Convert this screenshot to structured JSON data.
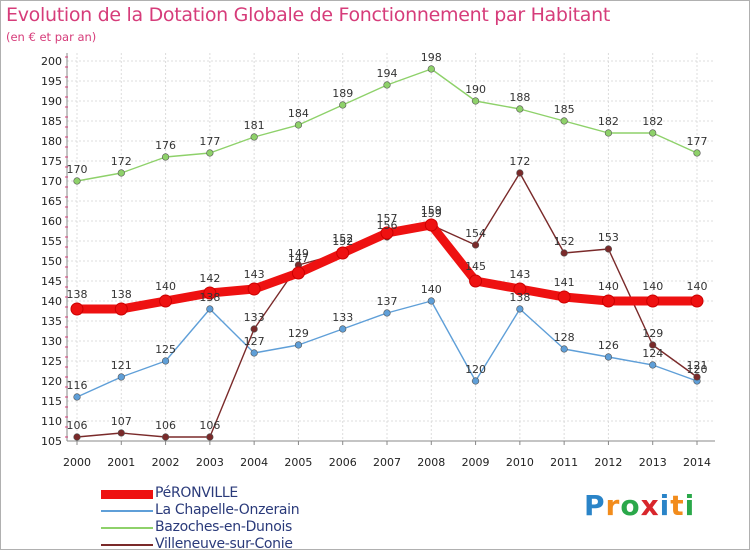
{
  "title": "Evolution de la Dotation Globale de Fonctionnement par Habitant",
  "subtitle": "(en € et par an)",
  "logo": {
    "text": "Proxiti",
    "letters": [
      "P",
      "r",
      "o",
      "x",
      "i",
      "t",
      "i"
    ],
    "colors": [
      "#2a84c8",
      "#f28c1c",
      "#2aa84a",
      "#d8262c",
      "#2a84c8",
      "#f28c1c",
      "#2aa84a"
    ]
  },
  "chart_data": {
    "type": "line",
    "x": [
      "2000",
      "2001",
      "2002",
      "2003",
      "2004",
      "2005",
      "2006",
      "2007",
      "2008",
      "2009",
      "2010",
      "2011",
      "2012",
      "2013",
      "2014"
    ],
    "ylim": [
      105,
      200
    ],
    "yticks": [
      105,
      110,
      115,
      120,
      125,
      130,
      135,
      140,
      145,
      150,
      155,
      160,
      165,
      170,
      175,
      180,
      185,
      190,
      195,
      200
    ],
    "grid": true,
    "legend_position": "bottom-left",
    "series": [
      {
        "name": "PéRONVILLE",
        "color": "#ee1111",
        "values": [
          138,
          138,
          140,
          142,
          143,
          147,
          152,
          157,
          159,
          145,
          143,
          141,
          140,
          140,
          140
        ],
        "labels": [
          "138",
          "138",
          "140",
          "142",
          "143",
          "147",
          "152",
          "157",
          "159",
          "145",
          "143",
          "141",
          "140",
          "140",
          "140"
        ]
      },
      {
        "name": "La Chapelle-Onzerain",
        "color": "#5f9fd8",
        "values": [
          116,
          121,
          125,
          138,
          127,
          129,
          133,
          137,
          140,
          120,
          138,
          128,
          126,
          124,
          120
        ],
        "labels": [
          "116",
          "121",
          "125",
          "138",
          "127",
          "129",
          "133",
          "137",
          "140",
          "120",
          "138",
          "128",
          "126",
          "124",
          "120"
        ]
      },
      {
        "name": "Bazoches-en-Dunois",
        "color": "#8ed16a",
        "values": [
          170,
          172,
          176,
          177,
          181,
          184,
          189,
          194,
          198,
          190,
          188,
          185,
          182,
          182,
          177
        ],
        "labels": [
          "170",
          "172",
          "176",
          "177",
          "181",
          "184",
          "189",
          "194",
          "198",
          "190",
          "188",
          "185",
          "182",
          "182",
          "177"
        ]
      },
      {
        "name": "Villeneuve-sur-Conie",
        "color": "#7a2a2a",
        "values": [
          106,
          107,
          106,
          106,
          133,
          149,
          152,
          156,
          159,
          154,
          172,
          152,
          153,
          129,
          121
        ],
        "labels": [
          "106",
          "107",
          "106",
          "106",
          "133",
          "149",
          "152",
          "156",
          "159",
          "154",
          "172",
          "152",
          "153",
          "129",
          "121"
        ]
      }
    ]
  }
}
